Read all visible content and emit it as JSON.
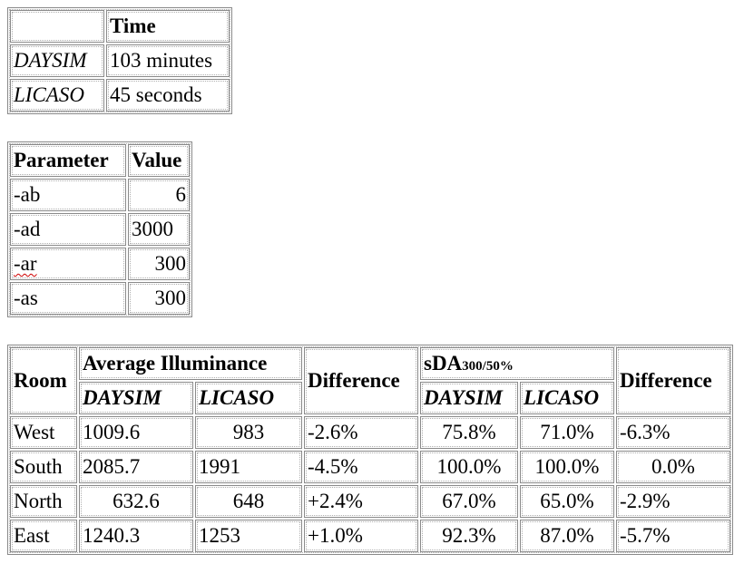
{
  "timing_table": {
    "header": "Time",
    "rows": [
      {
        "label": "DAYSIM",
        "value": "103 minutes"
      },
      {
        "label": "LICASO",
        "value": "45 seconds"
      }
    ]
  },
  "parameter_table": {
    "headers": [
      "Parameter",
      "Value"
    ],
    "rows": [
      {
        "param": "-ab",
        "value": "6"
      },
      {
        "param": "-ad",
        "value": "3000"
      },
      {
        "param": "-ar",
        "value": "300"
      },
      {
        "param": "-as",
        "value": "300"
      }
    ]
  },
  "results_table": {
    "room_header": "Room",
    "avg_illuminance_header": "Average Illuminance",
    "difference_header": "Difference",
    "sda_header_main": "sDA",
    "sda_header_sub": "300/50%",
    "daysim_label": "DAYSIM",
    "licaso_label": "LICASO",
    "rows": [
      {
        "room": "West",
        "ill_daysim": "1009.6",
        "ill_licaso": "983",
        "ill_diff": "-2.6%",
        "sda_daysim": "75.8%",
        "sda_licaso": "71.0%",
        "sda_diff": "-6.3%"
      },
      {
        "room": "South",
        "ill_daysim": "2085.7",
        "ill_licaso": "1991",
        "ill_diff": "-4.5%",
        "sda_daysim": "100.0%",
        "sda_licaso": "100.0%",
        "sda_diff": "0.0%"
      },
      {
        "room": "North",
        "ill_daysim": "632.6",
        "ill_licaso": "648",
        "ill_diff": "+2.4%",
        "sda_daysim": "67.0%",
        "sda_licaso": "65.0%",
        "sda_diff": "-2.9%"
      },
      {
        "room": "East",
        "ill_daysim": "1240.3",
        "ill_licaso": "1253",
        "ill_diff": "+1.0%",
        "sda_daysim": "92.3%",
        "sda_licaso": "87.0%",
        "sda_diff": "-5.7%"
      }
    ]
  }
}
